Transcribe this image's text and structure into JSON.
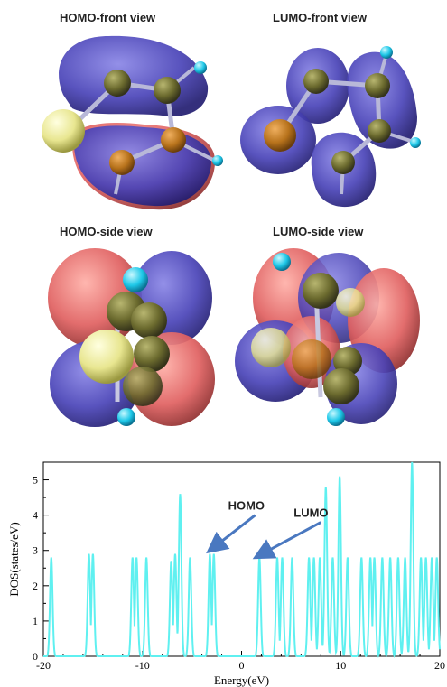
{
  "panels": {
    "homo_front": "HOMO-front view",
    "lumo_front": "LUMO-front view",
    "homo_side": "HOMO-side view",
    "lumo_side": "LUMO-side view"
  },
  "colors": {
    "orbital_blue": "#4a44b8",
    "orbital_red": "#e06060",
    "sulfur_yellow": "#e8e690",
    "carbon_olive": "#6b6a2e",
    "nitrogen_orange": "#b8731c",
    "hydrogen_cyan": "#1ec8e8",
    "dos_line": "#5ff0f0",
    "arrow": "#4a78c0"
  },
  "chart_data": {
    "type": "line",
    "xlabel": "Energy(eV)",
    "ylabel": "DOS(states/eV)",
    "xlim": [
      -20,
      20
    ],
    "ylim": [
      0,
      5.5
    ],
    "xticks": [
      -20,
      -10,
      0,
      10,
      20
    ],
    "yticks": [
      0,
      1,
      2,
      3,
      4,
      5
    ],
    "grid": false,
    "series": [
      {
        "peaks": [
          {
            "e": -19.2,
            "h": 2.8
          },
          {
            "e": -15.4,
            "h": 2.9
          },
          {
            "e": -15.0,
            "h": 2.9
          },
          {
            "e": -11.0,
            "h": 2.8
          },
          {
            "e": -10.6,
            "h": 2.8
          },
          {
            "e": -9.6,
            "h": 2.8
          },
          {
            "e": -7.1,
            "h": 2.7
          },
          {
            "e": -6.7,
            "h": 2.9
          },
          {
            "e": -6.2,
            "h": 4.6
          },
          {
            "e": -5.2,
            "h": 2.8
          },
          {
            "e": -3.2,
            "h": 2.9
          },
          {
            "e": -2.8,
            "h": 2.9
          },
          {
            "e": 1.8,
            "h": 2.8
          },
          {
            "e": 3.6,
            "h": 2.8
          },
          {
            "e": 4.1,
            "h": 2.8
          },
          {
            "e": 5.1,
            "h": 2.8
          },
          {
            "e": 6.8,
            "h": 2.8
          },
          {
            "e": 7.3,
            "h": 2.8
          },
          {
            "e": 7.9,
            "h": 2.8
          },
          {
            "e": 8.5,
            "h": 4.8
          },
          {
            "e": 9.2,
            "h": 2.8
          },
          {
            "e": 9.9,
            "h": 5.1
          },
          {
            "e": 10.7,
            "h": 2.8
          },
          {
            "e": 12.1,
            "h": 2.8
          },
          {
            "e": 13.0,
            "h": 2.8
          },
          {
            "e": 13.4,
            "h": 2.8
          },
          {
            "e": 14.2,
            "h": 2.8
          },
          {
            "e": 15.0,
            "h": 2.8
          },
          {
            "e": 15.8,
            "h": 2.8
          },
          {
            "e": 16.5,
            "h": 2.8
          },
          {
            "e": 17.2,
            "h": 5.5
          },
          {
            "e": 18.1,
            "h": 2.8
          },
          {
            "e": 18.6,
            "h": 2.8
          },
          {
            "e": 19.2,
            "h": 2.8
          },
          {
            "e": 19.7,
            "h": 2.8
          }
        ]
      }
    ],
    "annotations": [
      {
        "text": "HOMO",
        "points_to_e": -3.0,
        "points_to_dos": 3.0
      },
      {
        "text": "LUMO",
        "points_to_e": 1.8,
        "points_to_dos": 2.8
      }
    ]
  }
}
